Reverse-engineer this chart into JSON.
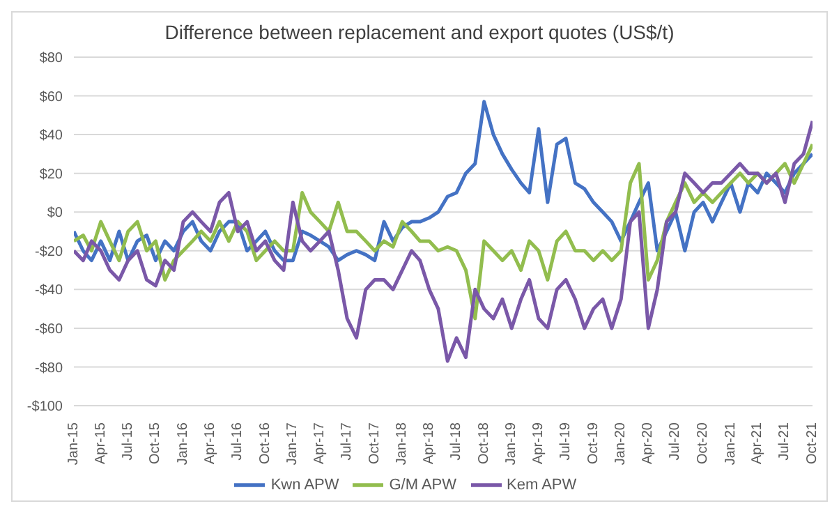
{
  "chart_data": {
    "type": "line",
    "title": "Difference between replacement and export quotes (US$/t)",
    "x": [
      "2015-01",
      "2015-02",
      "2015-03",
      "2015-04",
      "2015-05",
      "2015-06",
      "2015-07",
      "2015-08",
      "2015-09",
      "2015-10",
      "2015-11",
      "2015-12",
      "2016-01",
      "2016-02",
      "2016-03",
      "2016-04",
      "2016-05",
      "2016-06",
      "2016-07",
      "2016-08",
      "2016-09",
      "2016-10",
      "2016-11",
      "2016-12",
      "2017-01",
      "2017-02",
      "2017-03",
      "2017-04",
      "2017-05",
      "2017-06",
      "2017-07",
      "2017-08",
      "2017-09",
      "2017-10",
      "2017-11",
      "2017-12",
      "2018-01",
      "2018-02",
      "2018-03",
      "2018-04",
      "2018-05",
      "2018-06",
      "2018-07",
      "2018-08",
      "2018-09",
      "2018-10",
      "2018-11",
      "2018-12",
      "2019-01",
      "2019-02",
      "2019-03",
      "2019-04",
      "2019-05",
      "2019-06",
      "2019-07",
      "2019-08",
      "2019-09",
      "2019-10",
      "2019-11",
      "2019-12",
      "2020-01",
      "2020-02",
      "2020-03",
      "2020-04",
      "2020-05",
      "2020-06",
      "2020-07",
      "2020-08",
      "2020-09",
      "2020-10",
      "2020-11",
      "2020-12",
      "2021-01",
      "2021-02",
      "2021-03",
      "2021-04",
      "2021-05",
      "2021-06",
      "2021-07",
      "2021-08",
      "2021-09",
      "2021-10"
    ],
    "series": [
      {
        "name": "Kwn APW",
        "color": "#4472c4",
        "values": [
          -10,
          -20,
          -25,
          -15,
          -25,
          -10,
          -25,
          -15,
          -12,
          -25,
          -15,
          -20,
          -10,
          -5,
          -15,
          -20,
          -10,
          -5,
          -5,
          -20,
          -15,
          -10,
          -20,
          -25,
          -25,
          -10,
          -12,
          -15,
          -18,
          -25,
          -22,
          -20,
          -22,
          -25,
          -5,
          -15,
          -8,
          -5,
          -5,
          -3,
          0,
          8,
          10,
          20,
          25,
          57,
          40,
          30,
          22,
          15,
          10,
          43,
          5,
          35,
          38,
          15,
          12,
          5,
          0,
          -5,
          -15,
          -5,
          5,
          15,
          -20,
          -10,
          0,
          -20,
          0,
          5,
          -5,
          5,
          15,
          0,
          15,
          10,
          20,
          15,
          10,
          20,
          25,
          30
        ]
      },
      {
        "name": "G/M APW",
        "color": "#92bd4e",
        "values": [
          -15,
          -12,
          -20,
          -5,
          -15,
          -25,
          -10,
          -5,
          -20,
          -15,
          -35,
          -25,
          -20,
          -15,
          -10,
          -15,
          -5,
          -15,
          -5,
          -10,
          -25,
          -20,
          -15,
          -20,
          -20,
          10,
          0,
          -5,
          -10,
          5,
          -10,
          -10,
          -15,
          -20,
          -15,
          -18,
          -5,
          -10,
          -15,
          -15,
          -20,
          -18,
          -20,
          -30,
          -55,
          -15,
          -20,
          -25,
          -20,
          -30,
          -15,
          -20,
          -35,
          -15,
          -10,
          -20,
          -20,
          -25,
          -20,
          -25,
          -20,
          15,
          25,
          -35,
          -25,
          -5,
          5,
          15,
          5,
          10,
          5,
          10,
          15,
          20,
          15,
          20,
          15,
          20,
          25,
          15,
          25,
          35
        ]
      },
      {
        "name": "Kem APW",
        "color": "#7a58a8",
        "values": [
          -20,
          -25,
          -15,
          -20,
          -30,
          -35,
          -25,
          -20,
          -35,
          -38,
          -25,
          -30,
          -5,
          0,
          -5,
          -10,
          5,
          10,
          -10,
          -5,
          -20,
          -15,
          -25,
          -30,
          5,
          -15,
          -20,
          -15,
          -10,
          -30,
          -55,
          -65,
          -40,
          -35,
          -35,
          -40,
          -30,
          -20,
          -25,
          -40,
          -50,
          -77,
          -65,
          -75,
          -40,
          -50,
          -55,
          -45,
          -60,
          -45,
          -35,
          -55,
          -60,
          -40,
          -35,
          -45,
          -60,
          -50,
          -45,
          -60,
          -45,
          -5,
          0,
          -60,
          -40,
          -5,
          0,
          20,
          15,
          10,
          15,
          15,
          20,
          25,
          20,
          20,
          15,
          20,
          5,
          25,
          30,
          47
        ]
      }
    ],
    "xlim": [
      "2015-01",
      "2021-10"
    ],
    "xticks": [
      {
        "value": "2015-01",
        "label": "Jan-15"
      },
      {
        "value": "2015-04",
        "label": "Apr-15"
      },
      {
        "value": "2015-07",
        "label": "Jul-15"
      },
      {
        "value": "2015-10",
        "label": "Oct-15"
      },
      {
        "value": "2016-01",
        "label": "Jan-16"
      },
      {
        "value": "2016-04",
        "label": "Apr-16"
      },
      {
        "value": "2016-07",
        "label": "Jul-16"
      },
      {
        "value": "2016-10",
        "label": "Oct-16"
      },
      {
        "value": "2017-01",
        "label": "Jan-17"
      },
      {
        "value": "2017-04",
        "label": "Apr-17"
      },
      {
        "value": "2017-07",
        "label": "Jul-17"
      },
      {
        "value": "2017-10",
        "label": "Oct-17"
      },
      {
        "value": "2018-01",
        "label": "Jan-18"
      },
      {
        "value": "2018-04",
        "label": "Apr-18"
      },
      {
        "value": "2018-07",
        "label": "Jul-18"
      },
      {
        "value": "2018-10",
        "label": "Oct-18"
      },
      {
        "value": "2019-01",
        "label": "Jan-19"
      },
      {
        "value": "2019-04",
        "label": "Apr-19"
      },
      {
        "value": "2019-07",
        "label": "Jul-19"
      },
      {
        "value": "2019-10",
        "label": "Oct-19"
      },
      {
        "value": "2020-01",
        "label": "Jan-20"
      },
      {
        "value": "2020-04",
        "label": "Apr-20"
      },
      {
        "value": "2020-07",
        "label": "Jul-20"
      },
      {
        "value": "2020-10",
        "label": "Oct-20"
      },
      {
        "value": "2021-01",
        "label": "Jan-21"
      },
      {
        "value": "2021-04",
        "label": "Apr-21"
      },
      {
        "value": "2021-07",
        "label": "Jul-21"
      },
      {
        "value": "2021-10",
        "label": "Oct-21"
      }
    ],
    "ylim": [
      -100,
      80
    ],
    "yticks": [
      {
        "value": -100,
        "label": "-$100"
      },
      {
        "value": -80,
        "label": "-$80"
      },
      {
        "value": -60,
        "label": "-$60"
      },
      {
        "value": -40,
        "label": "-$40"
      },
      {
        "value": -20,
        "label": "-$20"
      },
      {
        "value": 0,
        "label": "$0"
      },
      {
        "value": 20,
        "label": "$20"
      },
      {
        "value": 40,
        "label": "$40"
      },
      {
        "value": 60,
        "label": "$60"
      },
      {
        "value": 80,
        "label": "$80"
      }
    ],
    "grid": "y",
    "legend": "bottom",
    "marker": "none",
    "line_style": "solid"
  }
}
